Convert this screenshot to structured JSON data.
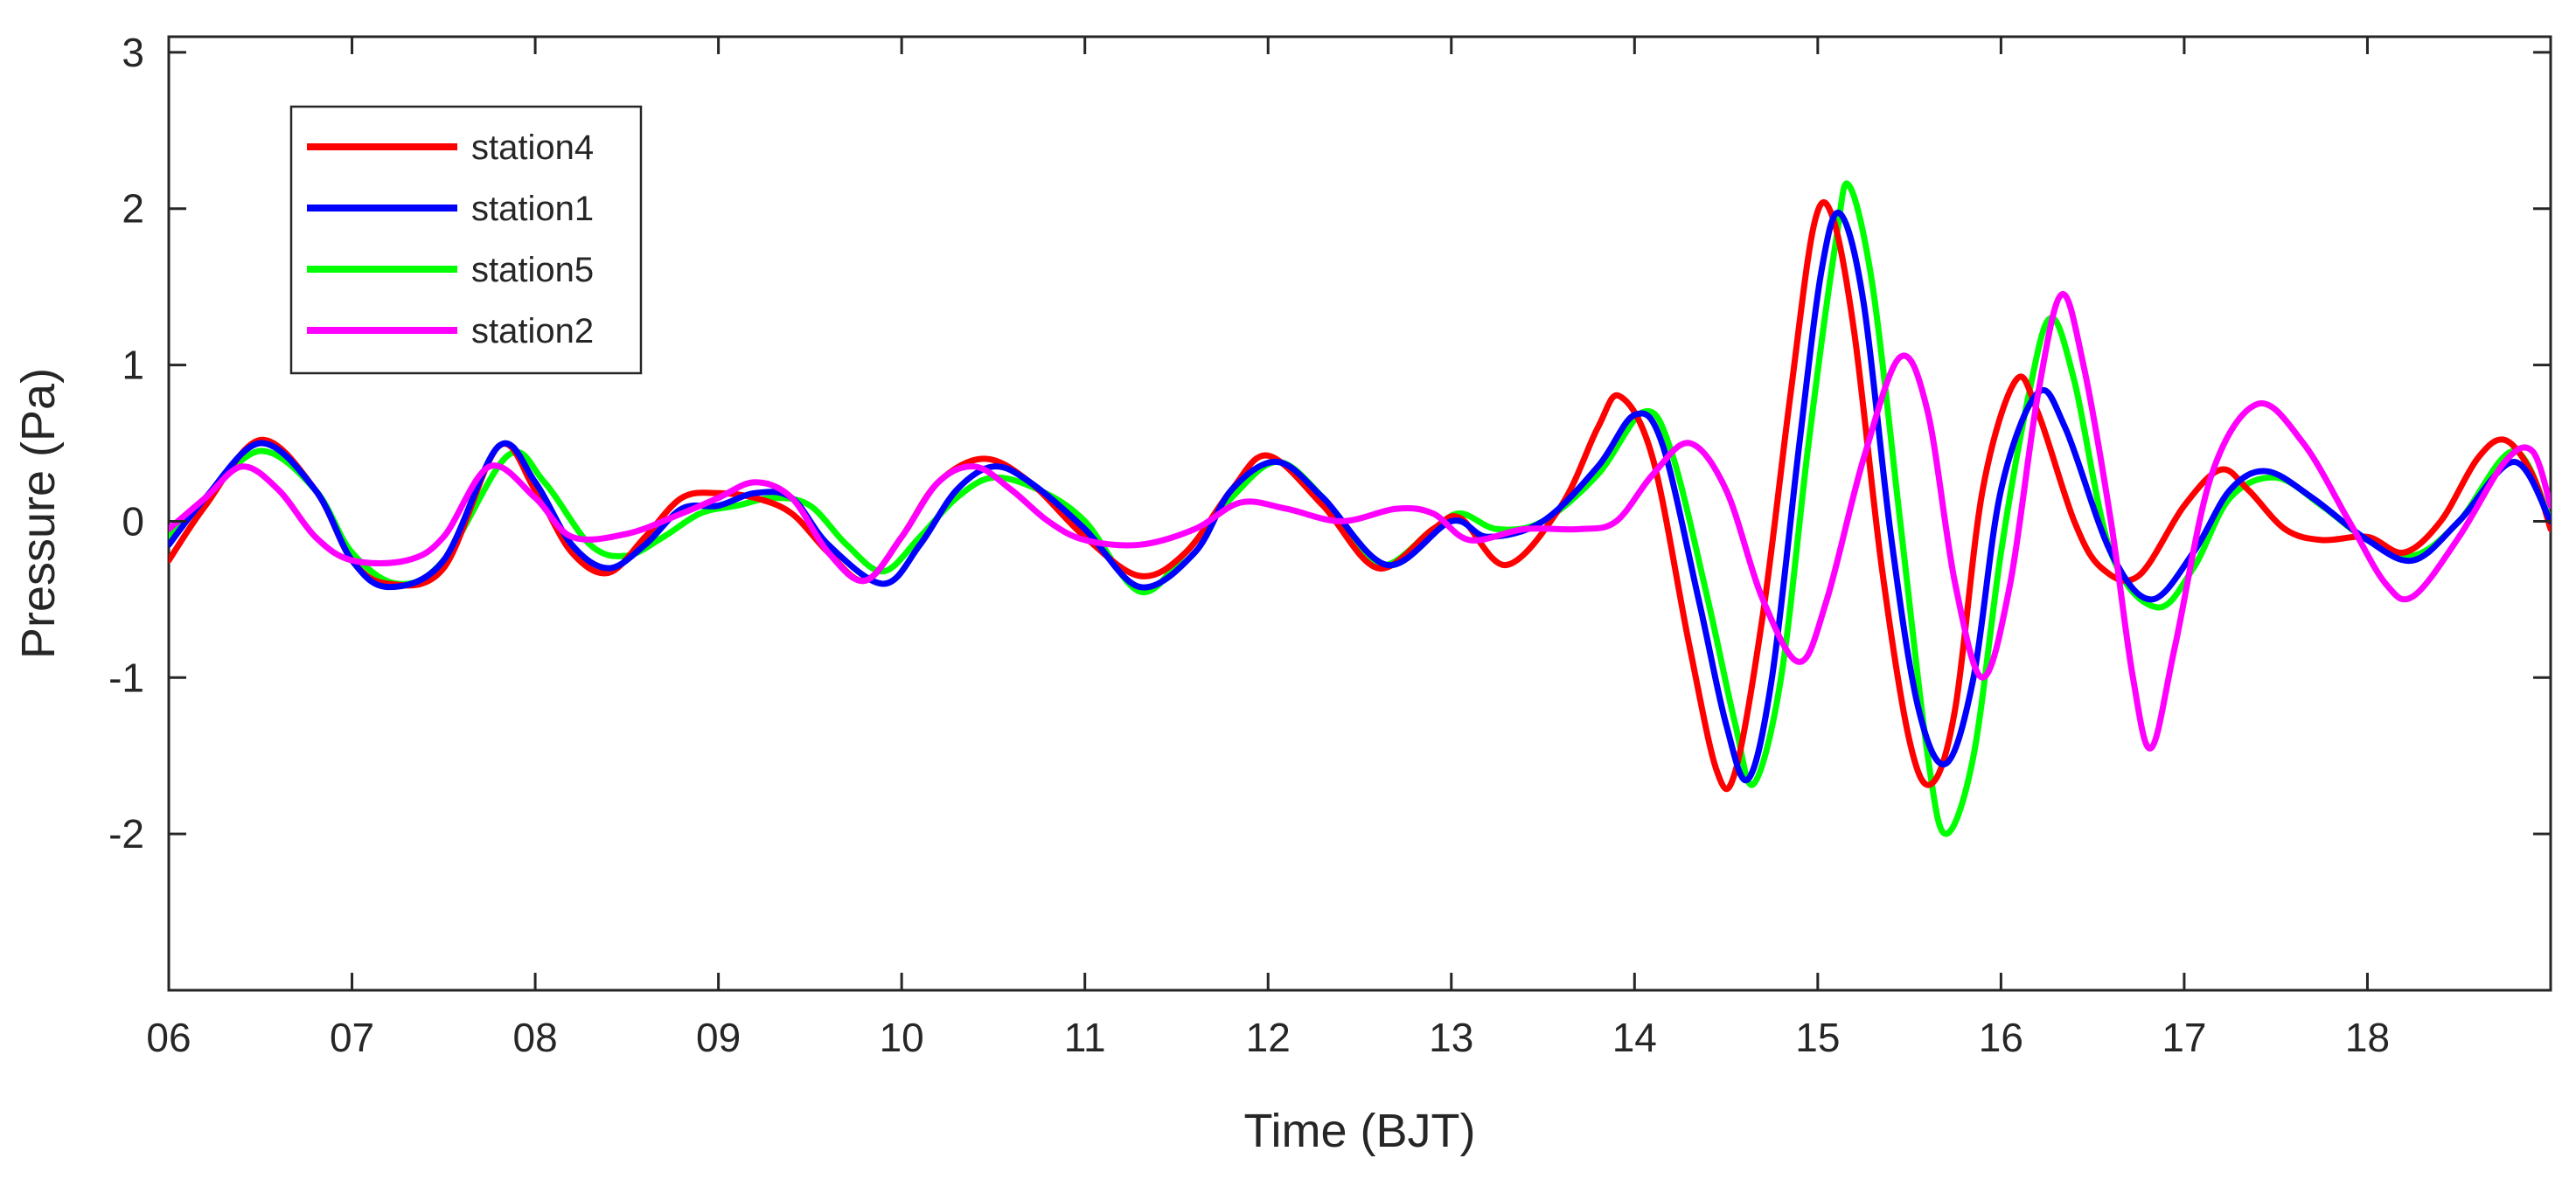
{
  "chart_data": {
    "type": "line",
    "title": "",
    "xlabel": "Time (BJT)",
    "ylabel": "Pressure (Pa)",
    "xlim": [
      6,
      19
    ],
    "ylim": [
      -3,
      3.1
    ],
    "x_ticks": [
      6,
      7,
      8,
      9,
      10,
      11,
      12,
      13,
      14,
      15,
      16,
      17,
      18
    ],
    "x_tick_labels": [
      "06",
      "07",
      "08",
      "09",
      "10",
      "11",
      "12",
      "13",
      "14",
      "15",
      "16",
      "17",
      "18"
    ],
    "y_ticks": [
      -2,
      -1,
      0,
      1,
      2,
      3
    ],
    "y_tick_labels": [
      "-2",
      "-1",
      "0",
      "1",
      "2",
      "3"
    ],
    "grid": false,
    "legend_position": "top-left",
    "series": [
      {
        "name": "station4",
        "color": "#ff0000",
        "points": [
          [
            6.0,
            -0.25
          ],
          [
            6.2,
            0.1
          ],
          [
            6.5,
            0.52
          ],
          [
            6.8,
            0.2
          ],
          [
            7.0,
            -0.25
          ],
          [
            7.2,
            -0.4
          ],
          [
            7.5,
            -0.3
          ],
          [
            7.8,
            0.48
          ],
          [
            8.0,
            0.2
          ],
          [
            8.2,
            -0.2
          ],
          [
            8.4,
            -0.33
          ],
          [
            8.6,
            -0.1
          ],
          [
            8.8,
            0.15
          ],
          [
            9.0,
            0.18
          ],
          [
            9.2,
            0.15
          ],
          [
            9.4,
            0.05
          ],
          [
            9.6,
            -0.2
          ],
          [
            9.8,
            -0.38
          ],
          [
            10.0,
            -0.1
          ],
          [
            10.2,
            0.25
          ],
          [
            10.45,
            0.4
          ],
          [
            10.7,
            0.25
          ],
          [
            11.0,
            -0.1
          ],
          [
            11.3,
            -0.35
          ],
          [
            11.55,
            -0.2
          ],
          [
            11.8,
            0.2
          ],
          [
            12.0,
            0.42
          ],
          [
            12.3,
            0.1
          ],
          [
            12.6,
            -0.3
          ],
          [
            12.9,
            -0.05
          ],
          [
            13.05,
            0.02
          ],
          [
            13.3,
            -0.28
          ],
          [
            13.6,
            0.1
          ],
          [
            13.8,
            0.6
          ],
          [
            13.92,
            0.8
          ],
          [
            14.1,
            0.4
          ],
          [
            14.3,
            -0.8
          ],
          [
            14.45,
            -1.6
          ],
          [
            14.55,
            -1.6
          ],
          [
            14.7,
            -0.6
          ],
          [
            14.85,
            0.8
          ],
          [
            14.98,
            1.9
          ],
          [
            15.08,
            1.95
          ],
          [
            15.2,
            1.2
          ],
          [
            15.35,
            -0.3
          ],
          [
            15.5,
            -1.4
          ],
          [
            15.62,
            -1.68
          ],
          [
            15.75,
            -1.2
          ],
          [
            15.9,
            0.2
          ],
          [
            16.08,
            0.9
          ],
          [
            16.2,
            0.7
          ],
          [
            16.4,
            0.0
          ],
          [
            16.55,
            -0.3
          ],
          [
            16.75,
            -0.35
          ],
          [
            17.0,
            0.1
          ],
          [
            17.2,
            0.33
          ],
          [
            17.35,
            0.2
          ],
          [
            17.55,
            -0.05
          ],
          [
            17.75,
            -0.12
          ],
          [
            18.0,
            -0.1
          ],
          [
            18.2,
            -0.2
          ],
          [
            18.4,
            0.0
          ],
          [
            18.6,
            0.4
          ],
          [
            18.75,
            0.52
          ],
          [
            18.9,
            0.3
          ],
          [
            19.0,
            -0.05
          ]
        ]
      },
      {
        "name": "station1",
        "color": "#0000ff",
        "points": [
          [
            6.0,
            -0.15
          ],
          [
            6.2,
            0.15
          ],
          [
            6.5,
            0.5
          ],
          [
            6.8,
            0.2
          ],
          [
            7.0,
            -0.25
          ],
          [
            7.2,
            -0.42
          ],
          [
            7.5,
            -0.25
          ],
          [
            7.8,
            0.48
          ],
          [
            8.0,
            0.25
          ],
          [
            8.2,
            -0.15
          ],
          [
            8.4,
            -0.3
          ],
          [
            8.6,
            -0.15
          ],
          [
            8.8,
            0.08
          ],
          [
            9.0,
            0.1
          ],
          [
            9.2,
            0.18
          ],
          [
            9.4,
            0.15
          ],
          [
            9.6,
            -0.15
          ],
          [
            9.9,
            -0.4
          ],
          [
            10.1,
            -0.15
          ],
          [
            10.3,
            0.2
          ],
          [
            10.5,
            0.35
          ],
          [
            10.7,
            0.25
          ],
          [
            11.0,
            -0.05
          ],
          [
            11.3,
            -0.42
          ],
          [
            11.6,
            -0.2
          ],
          [
            11.8,
            0.2
          ],
          [
            12.05,
            0.38
          ],
          [
            12.3,
            0.15
          ],
          [
            12.65,
            -0.28
          ],
          [
            13.0,
            0.0
          ],
          [
            13.2,
            -0.1
          ],
          [
            13.5,
            0.0
          ],
          [
            13.8,
            0.35
          ],
          [
            14.0,
            0.68
          ],
          [
            14.15,
            0.5
          ],
          [
            14.35,
            -0.5
          ],
          [
            14.5,
            -1.3
          ],
          [
            14.62,
            -1.65
          ],
          [
            14.75,
            -1.0
          ],
          [
            14.9,
            0.5
          ],
          [
            15.02,
            1.6
          ],
          [
            15.12,
            1.97
          ],
          [
            15.25,
            1.4
          ],
          [
            15.4,
            -0.1
          ],
          [
            15.55,
            -1.2
          ],
          [
            15.7,
            -1.55
          ],
          [
            15.85,
            -1.0
          ],
          [
            16.0,
            0.2
          ],
          [
            16.2,
            0.82
          ],
          [
            16.35,
            0.6
          ],
          [
            16.6,
            -0.2
          ],
          [
            16.82,
            -0.5
          ],
          [
            17.05,
            -0.2
          ],
          [
            17.25,
            0.2
          ],
          [
            17.45,
            0.32
          ],
          [
            17.7,
            0.15
          ],
          [
            18.0,
            -0.12
          ],
          [
            18.25,
            -0.25
          ],
          [
            18.5,
            0.0
          ],
          [
            18.8,
            0.38
          ],
          [
            19.0,
            0.0
          ]
        ]
      },
      {
        "name": "station5",
        "color": "#00ff00",
        "points": [
          [
            6.0,
            -0.1
          ],
          [
            6.2,
            0.15
          ],
          [
            6.5,
            0.45
          ],
          [
            6.8,
            0.2
          ],
          [
            7.0,
            -0.2
          ],
          [
            7.25,
            -0.4
          ],
          [
            7.5,
            -0.25
          ],
          [
            7.85,
            0.42
          ],
          [
            8.05,
            0.25
          ],
          [
            8.3,
            -0.15
          ],
          [
            8.5,
            -0.22
          ],
          [
            8.7,
            -0.1
          ],
          [
            8.9,
            0.05
          ],
          [
            9.1,
            0.1
          ],
          [
            9.3,
            0.15
          ],
          [
            9.5,
            0.1
          ],
          [
            9.7,
            -0.15
          ],
          [
            9.9,
            -0.32
          ],
          [
            10.1,
            -0.1
          ],
          [
            10.3,
            0.15
          ],
          [
            10.5,
            0.28
          ],
          [
            10.75,
            0.2
          ],
          [
            11.0,
            0.0
          ],
          [
            11.3,
            -0.45
          ],
          [
            11.55,
            -0.2
          ],
          [
            11.8,
            0.15
          ],
          [
            12.05,
            0.38
          ],
          [
            12.3,
            0.15
          ],
          [
            12.6,
            -0.28
          ],
          [
            12.9,
            -0.05
          ],
          [
            13.05,
            0.05
          ],
          [
            13.25,
            -0.05
          ],
          [
            13.5,
            0.0
          ],
          [
            13.8,
            0.3
          ],
          [
            14.05,
            0.7
          ],
          [
            14.2,
            0.45
          ],
          [
            14.4,
            -0.5
          ],
          [
            14.55,
            -1.3
          ],
          [
            14.65,
            -1.68
          ],
          [
            14.8,
            -1.0
          ],
          [
            14.95,
            0.5
          ],
          [
            15.1,
            1.8
          ],
          [
            15.17,
            2.15
          ],
          [
            15.3,
            1.5
          ],
          [
            15.45,
            0.0
          ],
          [
            15.6,
            -1.5
          ],
          [
            15.7,
            -2.0
          ],
          [
            15.85,
            -1.5
          ],
          [
            16.0,
            -0.2
          ],
          [
            16.15,
            0.8
          ],
          [
            16.27,
            1.3
          ],
          [
            16.4,
            0.9
          ],
          [
            16.6,
            -0.2
          ],
          [
            16.85,
            -0.55
          ],
          [
            17.05,
            -0.3
          ],
          [
            17.25,
            0.15
          ],
          [
            17.5,
            0.28
          ],
          [
            17.75,
            0.1
          ],
          [
            18.0,
            -0.12
          ],
          [
            18.25,
            -0.22
          ],
          [
            18.5,
            0.0
          ],
          [
            18.8,
            0.45
          ],
          [
            19.0,
            0.0
          ]
        ]
      },
      {
        "name": "station2",
        "color": "#ff00ff",
        "points": [
          [
            6.0,
            -0.05
          ],
          [
            6.2,
            0.15
          ],
          [
            6.4,
            0.35
          ],
          [
            6.6,
            0.2
          ],
          [
            6.8,
            -0.1
          ],
          [
            7.0,
            -0.25
          ],
          [
            7.3,
            -0.25
          ],
          [
            7.5,
            -0.1
          ],
          [
            7.75,
            0.35
          ],
          [
            8.0,
            0.15
          ],
          [
            8.2,
            -0.1
          ],
          [
            8.5,
            -0.08
          ],
          [
            8.8,
            0.05
          ],
          [
            9.0,
            0.15
          ],
          [
            9.2,
            0.25
          ],
          [
            9.4,
            0.15
          ],
          [
            9.6,
            -0.2
          ],
          [
            9.8,
            -0.38
          ],
          [
            10.0,
            -0.1
          ],
          [
            10.2,
            0.25
          ],
          [
            10.4,
            0.35
          ],
          [
            10.6,
            0.2
          ],
          [
            10.8,
            0.0
          ],
          [
            11.0,
            -0.12
          ],
          [
            11.3,
            -0.15
          ],
          [
            11.6,
            -0.05
          ],
          [
            11.85,
            0.12
          ],
          [
            12.1,
            0.08
          ],
          [
            12.4,
            0.0
          ],
          [
            12.7,
            0.08
          ],
          [
            12.9,
            0.05
          ],
          [
            13.1,
            -0.12
          ],
          [
            13.4,
            -0.05
          ],
          [
            13.7,
            -0.05
          ],
          [
            13.9,
            0.0
          ],
          [
            14.1,
            0.3
          ],
          [
            14.3,
            0.5
          ],
          [
            14.5,
            0.2
          ],
          [
            14.7,
            -0.5
          ],
          [
            14.9,
            -0.9
          ],
          [
            15.05,
            -0.5
          ],
          [
            15.25,
            0.4
          ],
          [
            15.45,
            1.05
          ],
          [
            15.6,
            0.7
          ],
          [
            15.75,
            -0.4
          ],
          [
            15.9,
            -1.0
          ],
          [
            16.05,
            -0.4
          ],
          [
            16.2,
            0.8
          ],
          [
            16.33,
            1.45
          ],
          [
            16.45,
            1.0
          ],
          [
            16.6,
            0.0
          ],
          [
            16.72,
            -1.0
          ],
          [
            16.82,
            -1.45
          ],
          [
            16.95,
            -0.8
          ],
          [
            17.15,
            0.3
          ],
          [
            17.4,
            0.75
          ],
          [
            17.65,
            0.5
          ],
          [
            17.9,
            0.0
          ],
          [
            18.1,
            -0.4
          ],
          [
            18.25,
            -0.48
          ],
          [
            18.5,
            -0.1
          ],
          [
            18.75,
            0.38
          ],
          [
            18.9,
            0.45
          ],
          [
            19.0,
            0.1
          ]
        ]
      }
    ]
  }
}
